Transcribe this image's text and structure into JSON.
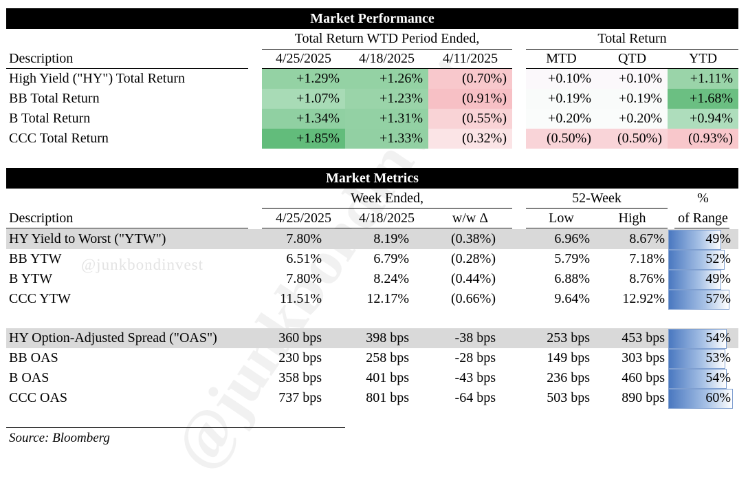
{
  "perf": {
    "title": "Market Performance",
    "group_wtd": "Total Return WTD Period Ended,",
    "group_total": "Total Return",
    "desc_header": "Description",
    "col_headers": [
      "4/25/2025",
      "4/18/2025",
      "4/11/2025",
      "MTD",
      "QTD",
      "YTD"
    ],
    "rows": [
      {
        "label": "High Yield (\"HY\") Total Return",
        "vals": [
          "+1.29%",
          "+1.26%",
          "(0.70%)",
          "+0.10%",
          "+0.10%",
          "+1.11%"
        ]
      },
      {
        "label": "BB Total Return",
        "vals": [
          "+1.07%",
          "+1.23%",
          "(0.91%)",
          "+0.19%",
          "+0.19%",
          "+1.68%"
        ]
      },
      {
        "label": "B Total Return",
        "vals": [
          "+1.34%",
          "+1.31%",
          "(0.55%)",
          "+0.20%",
          "+0.20%",
          "+0.94%"
        ]
      },
      {
        "label": "CCC Total Return",
        "vals": [
          "+1.85%",
          "+1.33%",
          "(0.32%)",
          "(0.50%)",
          "(0.50%)",
          "(0.93%)"
        ]
      }
    ],
    "cell_colors": [
      [
        "#94d2a4",
        "#94d2a4",
        "#f8c8cc",
        "#fbf8fb",
        "#fbf8fb",
        "#9ad4a9"
      ],
      [
        "#a8dbb6",
        "#9ad4a9",
        "#f7c0c5",
        "#f9fbfa",
        "#f9fbfa",
        "#6bbf82"
      ],
      [
        "#90d0a2",
        "#93d1a4",
        "#f9d3d6",
        "#fafcfb",
        "#fafcfb",
        "#aeddbc"
      ],
      [
        "#62bc7b",
        "#92d0a3",
        "#fbe4e6",
        "#f9d4d8",
        "#f9d4d8",
        "#f8c7cb"
      ]
    ]
  },
  "metrics": {
    "title": "Market Metrics",
    "group_week": "Week Ended,",
    "group_52": "52-Week",
    "pct_header_1": "%",
    "pct_header_2": "of Range",
    "desc_header": "Description",
    "col_headers": [
      "4/25/2025",
      "4/18/2025",
      "w/w Δ",
      "Low",
      "High"
    ],
    "ytw_rows": [
      {
        "label": "HY Yield to Worst (\"YTW\")",
        "vals": [
          "7.80%",
          "8.19%",
          "(0.38%)",
          "6.96%",
          "8.67%"
        ],
        "pct": "49%",
        "pct_value": 0.49
      },
      {
        "label": "BB YTW",
        "vals": [
          "6.51%",
          "6.79%",
          "(0.28%)",
          "5.79%",
          "7.18%"
        ],
        "pct": "52%",
        "pct_value": 0.52
      },
      {
        "label": "B YTW",
        "vals": [
          "7.80%",
          "8.24%",
          "(0.44%)",
          "6.88%",
          "8.76%"
        ],
        "pct": "49%",
        "pct_value": 0.49
      },
      {
        "label": "CCC YTW",
        "vals": [
          "11.51%",
          "12.17%",
          "(0.66%)",
          "9.64%",
          "12.92%"
        ],
        "pct": "57%",
        "pct_value": 0.57
      }
    ],
    "oas_rows": [
      {
        "label": "HY Option-Adjusted Spread (\"OAS\")",
        "vals": [
          "360 bps",
          "398 bps",
          "-38 bps",
          "253 bps",
          "453 bps"
        ],
        "pct": "54%",
        "pct_value": 0.54
      },
      {
        "label": "BB OAS",
        "vals": [
          "230 bps",
          "258 bps",
          "-28 bps",
          "149 bps",
          "303 bps"
        ],
        "pct": "53%",
        "pct_value": 0.53
      },
      {
        "label": "B OAS",
        "vals": [
          "358 bps",
          "401 bps",
          "-43 bps",
          "236 bps",
          "460 bps"
        ],
        "pct": "54%",
        "pct_value": 0.54
      },
      {
        "label": "CCC OAS",
        "vals": [
          "737 bps",
          "801 bps",
          "-64 bps",
          "503 bps",
          "890 bps"
        ],
        "pct": "60%",
        "pct_value": 0.6
      }
    ]
  },
  "source": "Source: Bloomberg",
  "watermark": {
    "small": "@junkbondinvest",
    "large": "@junkbondinvest"
  }
}
